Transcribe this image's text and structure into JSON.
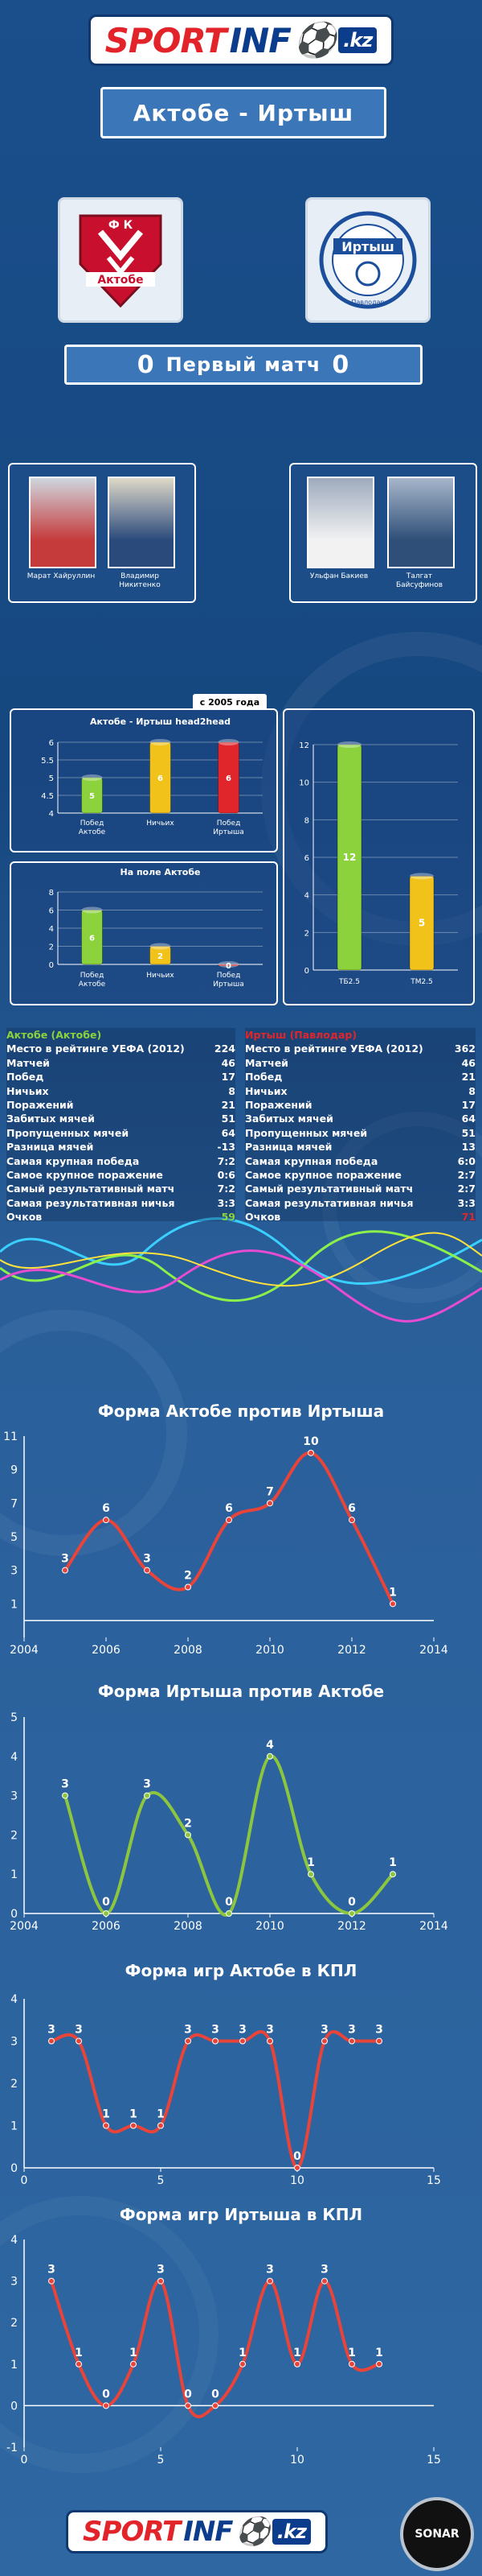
{
  "header": {
    "logo_sport": "SPORT",
    "logo_info": "INF",
    "logo_kz": ".kz"
  },
  "match": {
    "title": "Актобе - Иртыш",
    "subtitle": "Первый матч",
    "zero_left": "0",
    "zero_right": "0"
  },
  "clubs": {
    "left": {
      "top": "Ф К",
      "name": "Актобе"
    },
    "right": {
      "name": "Иртыш",
      "city": "Павлодар"
    }
  },
  "coaches": {
    "left": [
      {
        "name": "Марат Хайруллин"
      },
      {
        "name": "Владимир Никитенко"
      }
    ],
    "right": [
      {
        "name": "Ульфан Бакиев"
      },
      {
        "name": "Талгат Байсуфинов"
      }
    ]
  },
  "since_label": "с 2005 года",
  "colors": {
    "green": "#8cd23c",
    "yellow": "#f0c21a",
    "red": "#e0262b",
    "line_red": "#e8443a",
    "line_green": "#8cc63e"
  },
  "stats": {
    "aktobe": {
      "header": "Актобе (Актобе)",
      "rows": [
        {
          "label": "Место в рейтинге УЕФА (2012)",
          "value": "224"
        },
        {
          "label": "Матчей",
          "value": "46"
        },
        {
          "label": "Побед",
          "value": "17"
        },
        {
          "label": "Ничьих",
          "value": "8"
        },
        {
          "label": "Поражений",
          "value": "21"
        },
        {
          "label": "Забитых мячей",
          "value": "51"
        },
        {
          "label": "Пропущенных мячей",
          "value": "64"
        },
        {
          "label": "Разница мячей",
          "value": "-13"
        },
        {
          "label": "Самая крупная победа",
          "value": "7:2"
        },
        {
          "label": "Самое крупное поражение",
          "value": "0:6"
        },
        {
          "label": "Самый результативный матч",
          "value": "7:2"
        },
        {
          "label": "Самая результативная ничья",
          "value": "3:3"
        },
        {
          "label": "Очков",
          "value": "59"
        }
      ]
    },
    "irtysh": {
      "header": "Иртыш (Павлодар)",
      "rows": [
        {
          "label": "Место в рейтинге УЕФА (2012)",
          "value": "362"
        },
        {
          "label": "Матчей",
          "value": "46"
        },
        {
          "label": "Побед",
          "value": "21"
        },
        {
          "label": "Ничьих",
          "value": "8"
        },
        {
          "label": "Поражений",
          "value": "17"
        },
        {
          "label": "Забитых мячей",
          "value": "64"
        },
        {
          "label": "Пропущенных мячей",
          "value": "51"
        },
        {
          "label": "Разница мячей",
          "value": "13"
        },
        {
          "label": "Самая крупная победа",
          "value": "6:0"
        },
        {
          "label": "Самое крупное поражение",
          "value": "2:7"
        },
        {
          "label": "Самый результативный матч",
          "value": "2:7"
        },
        {
          "label": "Самая результативная ничья",
          "value": "3:3"
        },
        {
          "label": "Очков",
          "value": "71"
        }
      ]
    }
  },
  "footer": {
    "sonar": "SONAR"
  },
  "chart_data": [
    {
      "type": "bar",
      "title": "Актобе - Иртыш head2head",
      "categories": [
        "Побед Актобе",
        "Ничьих",
        "Побед Иртыша"
      ],
      "values": [
        5,
        6,
        6
      ],
      "yticks": [
        "4",
        "4.5",
        "5",
        "5.5",
        "6"
      ],
      "ylim": [
        4,
        6
      ]
    },
    {
      "type": "bar",
      "title": "На поле Актобе",
      "categories": [
        "Побед Актобе",
        "Ничьих",
        "Побед Иртыша"
      ],
      "values": [
        6,
        2,
        0
      ],
      "yticks": [
        "0",
        "2",
        "4",
        "6",
        "8"
      ],
      "ylim": [
        0,
        8
      ]
    },
    {
      "type": "bar",
      "title": "",
      "categories": [
        "ТБ2.5",
        "ТМ2.5"
      ],
      "values": [
        12,
        5
      ],
      "yticks": [
        "0",
        "2",
        "4",
        "6",
        "8",
        "10",
        "12"
      ],
      "ylim": [
        0,
        12
      ]
    },
    {
      "type": "line",
      "title": "Форма Актобе против Иртыша",
      "x": [
        2005,
        2006,
        2007,
        2008,
        2009,
        2010,
        2011,
        2012,
        2013
      ],
      "values": [
        3,
        6,
        3,
        2,
        6,
        7,
        10,
        6,
        1
      ],
      "xticks": [
        "2004",
        "2006",
        "2008",
        "2010",
        "2012",
        "2014"
      ],
      "yticks": [
        "1",
        "3",
        "5",
        "7",
        "9",
        "11"
      ],
      "xlim": [
        2004,
        2014
      ],
      "ylim": [
        -1,
        11
      ]
    },
    {
      "type": "line",
      "title": "Форма Иртыша против Актобе",
      "x": [
        2005,
        2006,
        2007,
        2008,
        2009,
        2010,
        2011,
        2012,
        2013
      ],
      "values": [
        3,
        0,
        3,
        2,
        0,
        4,
        1,
        0,
        1
      ],
      "xticks": [
        "2004",
        "2006",
        "2008",
        "2010",
        "2012",
        "2014"
      ],
      "yticks": [
        "0",
        "1",
        "2",
        "3",
        "4",
        "5"
      ],
      "xlim": [
        2004,
        2014
      ],
      "ylim": [
        0,
        5
      ]
    },
    {
      "type": "line",
      "title": "Форма игр Актобе в КПЛ",
      "x": [
        1,
        2,
        3,
        4,
        5,
        6,
        7,
        8,
        9,
        10,
        11,
        12,
        13
      ],
      "values": [
        3,
        3,
        1,
        1,
        1,
        3,
        3,
        3,
        3,
        0,
        3,
        3,
        3
      ],
      "xticks": [
        "0",
        "5",
        "10",
        "15"
      ],
      "yticks": [
        "0",
        "1",
        "2",
        "3",
        "4"
      ],
      "xlim": [
        0,
        15
      ],
      "ylim": [
        0,
        4
      ]
    },
    {
      "type": "line",
      "title": "Форма игр Иртыша в КПЛ",
      "x": [
        1,
        2,
        3,
        4,
        5,
        6,
        7,
        8,
        9,
        10,
        11,
        12,
        13
      ],
      "values": [
        3,
        1,
        0,
        1,
        3,
        0,
        0,
        1,
        3,
        1,
        3,
        1,
        1
      ],
      "xticks": [
        "0",
        "5",
        "10",
        "15"
      ],
      "yticks": [
        "-1",
        "0",
        "1",
        "2",
        "3",
        "4"
      ],
      "xlim": [
        0,
        15
      ],
      "ylim": [
        -1,
        4
      ]
    }
  ]
}
